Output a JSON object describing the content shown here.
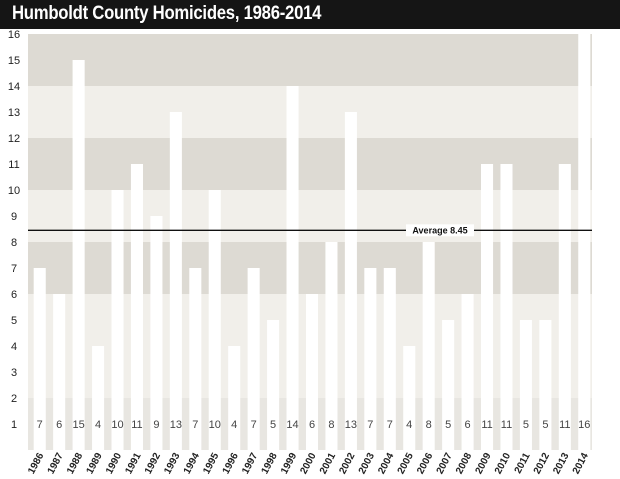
{
  "chart_data": {
    "type": "bar",
    "title": "Humboldt County Homicides, 1986-2014",
    "categories": [
      "1986",
      "1987",
      "1988",
      "1989",
      "1990",
      "1991",
      "1992",
      "1993",
      "1994",
      "1995",
      "1996",
      "1997",
      "1998",
      "1999",
      "2000",
      "2001",
      "2002",
      "2003",
      "2004",
      "2005",
      "2006",
      "2007",
      "2008",
      "2009",
      "2010",
      "2011",
      "2012",
      "2013",
      "2014"
    ],
    "values": [
      7,
      6,
      15,
      4,
      10,
      11,
      9,
      13,
      7,
      10,
      4,
      7,
      5,
      14,
      6,
      8,
      13,
      7,
      7,
      4,
      8,
      5,
      6,
      11,
      11,
      5,
      5,
      11,
      16
    ],
    "ylim": [
      0,
      16
    ],
    "yticks": [
      1,
      2,
      3,
      4,
      5,
      6,
      7,
      8,
      9,
      10,
      11,
      12,
      13,
      14,
      15,
      16
    ],
    "reference_line": {
      "value": 8.45,
      "label": "Average 8.45"
    },
    "colors": {
      "bar": "#ffffff",
      "band_light": "#f1efea",
      "band_dark": "#dddad3",
      "band_lower": "#e8e6e1",
      "title_bg": "#151515"
    }
  }
}
